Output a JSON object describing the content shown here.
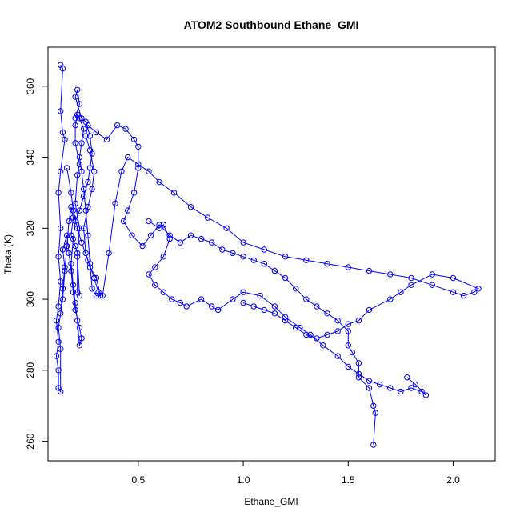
{
  "chart_data": {
    "type": "scatter",
    "title": "ATOM2 Southbound Ethane_GMI",
    "xlabel": "Ethane_GMI",
    "ylabel": "Theta (K)",
    "xlim": [
      0.07,
      2.2
    ],
    "ylim": [
      254.5,
      371
    ],
    "x_ticks": [
      0.5,
      1.0,
      1.5,
      2.0
    ],
    "x_tick_labels": [
      "0.5",
      "1.0",
      "1.5",
      "2.0"
    ],
    "y_ticks": [
      260,
      280,
      300,
      320,
      340,
      360
    ],
    "y_tick_labels": [
      "260",
      "280",
      "300",
      "320",
      "340",
      "360"
    ],
    "grid": false,
    "legend": "none",
    "marker": "open-circle",
    "connected": true,
    "color": "#0000ff",
    "series": [
      {
        "points": [
          [
            0.13,
            366
          ],
          [
            0.14,
            365
          ],
          [
            0.13,
            353
          ],
          [
            0.14,
            347
          ],
          [
            0.15,
            345
          ],
          [
            0.13,
            336
          ],
          [
            0.12,
            330
          ],
          [
            0.13,
            320
          ],
          [
            0.12,
            312
          ],
          [
            0.13,
            305
          ],
          [
            0.12,
            298
          ],
          [
            0.11,
            294
          ],
          [
            0.12,
            288
          ],
          [
            0.11,
            284
          ],
          [
            0.12,
            280
          ],
          [
            0.12,
            275
          ],
          [
            0.13,
            274
          ],
          [
            0.13,
            286
          ],
          [
            0.12,
            292
          ],
          [
            0.14,
            300
          ],
          [
            0.15,
            308
          ],
          [
            0.16,
            315
          ],
          [
            0.17,
            322
          ],
          [
            0.18,
            326
          ],
          [
            0.19,
            323
          ],
          [
            0.18,
            318
          ],
          [
            0.2,
            315
          ],
          [
            0.21,
            313
          ],
          [
            0.21,
            302
          ],
          [
            0.22,
            301
          ],
          [
            0.21,
            312
          ],
          [
            0.22,
            320
          ],
          [
            0.2,
            327
          ],
          [
            0.21,
            335
          ],
          [
            0.22,
            338
          ],
          [
            0.2,
            344
          ],
          [
            0.2,
            349
          ],
          [
            0.21,
            352
          ],
          [
            0.22,
            351
          ],
          [
            0.24,
            348
          ],
          [
            0.23,
            344
          ],
          [
            0.22,
            340
          ],
          [
            0.23,
            336
          ],
          [
            0.24,
            331
          ],
          [
            0.25,
            325
          ],
          [
            0.26,
            318
          ],
          [
            0.27,
            310
          ],
          [
            0.28,
            303
          ],
          [
            0.3,
            301
          ],
          [
            0.32,
            301
          ],
          [
            0.3,
            306
          ],
          [
            0.27,
            309
          ],
          [
            0.25,
            313
          ],
          [
            0.24,
            320
          ],
          [
            0.26,
            326
          ],
          [
            0.28,
            331
          ],
          [
            0.29,
            336
          ],
          [
            0.27,
            342
          ],
          [
            0.25,
            346
          ],
          [
            0.26,
            349
          ],
          [
            0.3,
            347
          ],
          [
            0.35,
            345
          ],
          [
            0.4,
            349
          ],
          [
            0.44,
            348
          ],
          [
            0.48,
            345
          ],
          [
            0.5,
            343
          ],
          [
            0.5,
            337
          ],
          [
            0.48,
            330
          ],
          [
            0.45,
            325
          ],
          [
            0.43,
            322
          ],
          [
            0.47,
            318
          ],
          [
            0.52,
            315
          ],
          [
            0.56,
            318
          ],
          [
            0.6,
            321
          ],
          [
            0.65,
            318
          ],
          [
            0.7,
            316
          ],
          [
            0.75,
            318
          ],
          [
            0.8,
            317
          ],
          [
            0.85,
            316
          ],
          [
            0.9,
            314
          ],
          [
            0.95,
            313
          ],
          [
            1.0,
            312
          ],
          [
            1.05,
            311
          ],
          [
            1.1,
            310
          ],
          [
            1.15,
            308
          ],
          [
            1.2,
            306
          ],
          [
            1.25,
            303
          ],
          [
            1.3,
            300
          ],
          [
            1.35,
            298
          ],
          [
            1.4,
            296
          ],
          [
            1.45,
            294
          ],
          [
            1.5,
            291
          ],
          [
            1.5,
            287
          ],
          [
            1.52,
            285
          ],
          [
            1.55,
            282
          ],
          [
            1.55,
            278
          ],
          [
            1.6,
            275
          ],
          [
            1.62,
            270
          ],
          [
            1.63,
            268
          ],
          [
            1.62,
            259
          ]
        ]
      },
      {
        "points": [
          [
            0.16,
            337
          ],
          [
            0.18,
            330
          ],
          [
            0.19,
            325
          ],
          [
            0.21,
            320
          ],
          [
            0.23,
            316
          ],
          [
            0.26,
            311
          ],
          [
            0.29,
            306
          ],
          [
            0.31,
            302
          ],
          [
            0.33,
            301
          ],
          [
            0.36,
            313
          ],
          [
            0.39,
            327
          ],
          [
            0.42,
            336
          ],
          [
            0.45,
            340
          ],
          [
            0.5,
            338
          ],
          [
            0.55,
            336
          ],
          [
            0.6,
            333
          ],
          [
            0.67,
            330
          ],
          [
            0.75,
            326
          ],
          [
            0.83,
            323
          ],
          [
            0.92,
            320
          ],
          [
            1.0,
            316
          ],
          [
            1.1,
            314
          ],
          [
            1.2,
            312
          ],
          [
            1.3,
            311
          ],
          [
            1.4,
            310
          ],
          [
            1.5,
            309
          ],
          [
            1.6,
            308
          ],
          [
            1.7,
            307
          ],
          [
            1.8,
            306
          ],
          [
            1.9,
            304
          ],
          [
            2.0,
            302
          ],
          [
            2.05,
            301
          ],
          [
            2.1,
            302
          ],
          [
            2.12,
            303
          ],
          [
            2.0,
            306
          ],
          [
            1.9,
            307
          ],
          [
            1.8,
            304
          ],
          [
            1.75,
            302
          ],
          [
            1.7,
            300
          ],
          [
            1.6,
            297
          ],
          [
            1.55,
            294
          ],
          [
            1.5,
            293
          ],
          [
            1.45,
            291
          ],
          [
            1.4,
            290
          ],
          [
            1.35,
            289
          ],
          [
            1.3,
            290
          ],
          [
            1.25,
            292
          ],
          [
            1.2,
            294
          ],
          [
            1.15,
            296
          ],
          [
            1.1,
            297
          ],
          [
            1.05,
            298
          ],
          [
            1.0,
            299
          ]
        ]
      },
      {
        "points": [
          [
            0.55,
            322
          ],
          [
            0.6,
            320
          ],
          [
            0.62,
            321
          ],
          [
            0.65,
            317
          ],
          [
            0.62,
            312
          ],
          [
            0.58,
            309
          ],
          [
            0.55,
            307
          ],
          [
            0.58,
            304
          ],
          [
            0.62,
            302
          ],
          [
            0.66,
            300
          ],
          [
            0.7,
            299
          ],
          [
            0.73,
            298
          ],
          [
            0.8,
            300
          ],
          [
            0.85,
            298
          ],
          [
            0.88,
            297
          ],
          [
            0.95,
            300
          ],
          [
            1.0,
            302
          ],
          [
            1.08,
            301
          ],
          [
            1.15,
            298
          ],
          [
            1.2,
            295
          ],
          [
            1.27,
            292
          ],
          [
            1.32,
            290
          ],
          [
            1.38,
            287
          ],
          [
            1.45,
            284
          ],
          [
            1.5,
            281
          ],
          [
            1.55,
            279
          ],
          [
            1.6,
            277
          ],
          [
            1.65,
            276
          ],
          [
            1.7,
            275
          ],
          [
            1.75,
            274
          ],
          [
            1.8,
            275
          ],
          [
            1.85,
            274
          ],
          [
            1.87,
            273
          ],
          [
            1.82,
            276
          ],
          [
            1.78,
            278
          ]
        ]
      },
      {
        "points": [
          [
            0.13,
            296
          ],
          [
            0.14,
            303
          ],
          [
            0.15,
            309
          ],
          [
            0.14,
            314
          ],
          [
            0.16,
            318
          ],
          [
            0.17,
            313
          ],
          [
            0.18,
            308
          ],
          [
            0.19,
            302
          ],
          [
            0.2,
            297
          ],
          [
            0.22,
            292
          ],
          [
            0.23,
            289
          ],
          [
            0.22,
            287
          ],
          [
            0.21,
            294
          ],
          [
            0.2,
            299
          ],
          [
            0.19,
            304
          ],
          [
            0.18,
            310
          ],
          [
            0.19,
            317
          ],
          [
            0.2,
            322
          ],
          [
            0.22,
            325
          ],
          [
            0.24,
            329
          ],
          [
            0.26,
            333
          ],
          [
            0.27,
            337
          ],
          [
            0.28,
            341
          ],
          [
            0.27,
            346
          ],
          [
            0.25,
            350
          ],
          [
            0.23,
            351
          ],
          [
            0.2,
            357
          ],
          [
            0.21,
            359
          ],
          [
            0.22,
            355
          ],
          [
            0.2,
            351
          ]
        ]
      }
    ]
  }
}
